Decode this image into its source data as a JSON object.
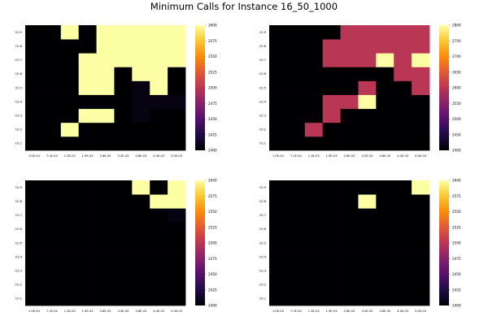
{
  "title": "Minimum Calls for Instance 16_50_1000",
  "chart_data": [
    {
      "type": "heatmap",
      "colormap": "inferno",
      "x_ticks": [
        "1.0E-04",
        "7.1E-04",
        "1.3E-03",
        "1.9E-03",
        "2.6E-03",
        "3.2E-03",
        "3.8E-03",
        "4.4E-03",
        "5.0E-03"
      ],
      "y_ticks": [
        "C0.1",
        "C0.2",
        "C0.3",
        "C0.4",
        "C0.5",
        "C0.6",
        "C0.7",
        "C0.8",
        "C0.9"
      ],
      "clim": [
        2400,
        2600
      ],
      "colorbar_ticks": [
        "2400",
        "2425",
        "2450",
        "2475",
        "2500",
        "2525",
        "2550",
        "2575",
        "2600"
      ],
      "values": [
        [
          2400,
          2400,
          2400,
          2400,
          2400,
          2400,
          2400,
          2400,
          2400
        ],
        [
          2400,
          2400,
          2600,
          2400,
          2400,
          2400,
          2400,
          2400,
          2400
        ],
        [
          2400,
          2400,
          2400,
          2600,
          2600,
          2400,
          2405,
          2400,
          2400
        ],
        [
          2400,
          2400,
          2400,
          2400,
          2400,
          2400,
          2405,
          2405,
          2405
        ],
        [
          2400,
          2400,
          2400,
          2600,
          2600,
          2400,
          2405,
          2600,
          2400
        ],
        [
          2400,
          2400,
          2400,
          2600,
          2600,
          2400,
          2600,
          2600,
          2400
        ],
        [
          2400,
          2400,
          2400,
          2600,
          2600,
          2600,
          2600,
          2600,
          2600
        ],
        [
          2400,
          2400,
          2400,
          2400,
          2600,
          2600,
          2600,
          2600,
          2600
        ],
        [
          2400,
          2400,
          2600,
          2400,
          2600,
          2600,
          2600,
          2600,
          2600
        ]
      ]
    },
    {
      "type": "heatmap",
      "colormap": "inferno",
      "x_ticks": [
        "1.0E-04",
        "7.1E-04",
        "1.3E-03",
        "1.9E-03",
        "2.6E-03",
        "3.2E-03",
        "3.8E-03",
        "4.4E-03",
        "5.0E-03"
      ],
      "y_ticks": [
        "C0.1",
        "C0.2",
        "C0.3",
        "C0.4",
        "C0.5",
        "C0.6",
        "C0.7",
        "C0.8",
        "C0.9"
      ],
      "clim": [
        2400,
        2800
      ],
      "colorbar_ticks": [
        "2400",
        "2450",
        "2500",
        "2550",
        "2600",
        "2650",
        "2700",
        "2750",
        "2800"
      ],
      "values": [
        [
          2400,
          2400,
          2400,
          2400,
          2400,
          2400,
          2400,
          2400,
          2400
        ],
        [
          2400,
          2400,
          2600,
          2400,
          2400,
          2400,
          2400,
          2400,
          2400
        ],
        [
          2400,
          2400,
          2400,
          2600,
          2400,
          2400,
          2400,
          2400,
          2400
        ],
        [
          2400,
          2400,
          2400,
          2600,
          2600,
          2800,
          2400,
          2400,
          2400
        ],
        [
          2400,
          2400,
          2400,
          2400,
          2400,
          2600,
          2400,
          2400,
          2600
        ],
        [
          2400,
          2400,
          2400,
          2400,
          2400,
          2400,
          2400,
          2600,
          2600
        ],
        [
          2400,
          2400,
          2400,
          2600,
          2600,
          2600,
          2800,
          2600,
          2800
        ],
        [
          2400,
          2400,
          2400,
          2600,
          2600,
          2600,
          2600,
          2600,
          2600
        ],
        [
          2400,
          2400,
          2400,
          2400,
          2600,
          2600,
          2600,
          2600,
          2600
        ]
      ]
    },
    {
      "type": "heatmap",
      "colormap": "inferno",
      "x_ticks": [
        "1.0E-04",
        "7.1E-04",
        "1.3E-03",
        "1.9E-03",
        "2.6E-03",
        "3.2E-03",
        "3.8E-03",
        "4.4E-03",
        "5.0E-03"
      ],
      "y_ticks": [
        "C0.1",
        "C0.2",
        "C0.3",
        "C0.4",
        "C0.5",
        "C0.6",
        "C0.7",
        "C0.8",
        "C0.9"
      ],
      "clim": [
        2400,
        2600
      ],
      "colorbar_ticks": [
        "2400",
        "2425",
        "2450",
        "2475",
        "2500",
        "2525",
        "2550",
        "2575",
        "2600"
      ],
      "values": [
        [
          2400,
          2400,
          2400,
          2400,
          2400,
          2400,
          2400,
          2400,
          2400
        ],
        [
          2400,
          2400,
          2400,
          2400,
          2400,
          2400,
          2400,
          2400,
          2400
        ],
        [
          2400,
          2400,
          2400,
          2400,
          2400,
          2400,
          2400,
          2400,
          2400
        ],
        [
          2400,
          2400,
          2400,
          2400,
          2400,
          2400,
          2400,
          2400,
          2400
        ],
        [
          2400,
          2400,
          2400,
          2400,
          2400,
          2400,
          2400,
          2400,
          2400
        ],
        [
          2400,
          2400,
          2400,
          2400,
          2400,
          2400,
          2400,
          2400,
          2400
        ],
        [
          2400,
          2400,
          2400,
          2400,
          2400,
          2400,
          2400,
          2400,
          2405
        ],
        [
          2400,
          2400,
          2400,
          2400,
          2400,
          2400,
          2400,
          2600,
          2600
        ],
        [
          2400,
          2400,
          2400,
          2400,
          2400,
          2400,
          2600,
          2400,
          2600
        ]
      ]
    },
    {
      "type": "heatmap",
      "colormap": "inferno",
      "x_ticks": [
        "1.0E-04",
        "7.1E-04",
        "1.3E-03",
        "1.9E-03",
        "2.6E-03",
        "3.2E-03",
        "3.8E-03",
        "4.4E-03",
        "5.0E-03"
      ],
      "y_ticks": [
        "C0.1",
        "C0.2",
        "C0.3",
        "C0.4",
        "C0.5",
        "C0.6",
        "C0.7",
        "C0.8",
        "C0.9"
      ],
      "clim": [
        2400,
        2600
      ],
      "colorbar_ticks": [
        "2400",
        "2425",
        "2450",
        "2475",
        "2500",
        "2525",
        "2550",
        "2575",
        "2600"
      ],
      "values": [
        [
          2400,
          2400,
          2400,
          2400,
          2400,
          2400,
          2400,
          2400,
          2400
        ],
        [
          2400,
          2400,
          2400,
          2400,
          2400,
          2400,
          2400,
          2400,
          2400
        ],
        [
          2400,
          2400,
          2400,
          2400,
          2400,
          2400,
          2400,
          2400,
          2400
        ],
        [
          2400,
          2400,
          2400,
          2400,
          2400,
          2400,
          2400,
          2400,
          2400
        ],
        [
          2400,
          2400,
          2400,
          2400,
          2400,
          2400,
          2400,
          2400,
          2400
        ],
        [
          2400,
          2400,
          2400,
          2400,
          2400,
          2400,
          2400,
          2400,
          2400
        ],
        [
          2400,
          2400,
          2400,
          2400,
          2400,
          2400,
          2400,
          2400,
          2400
        ],
        [
          2400,
          2400,
          2400,
          2400,
          2400,
          2600,
          2400,
          2400,
          2400
        ],
        [
          2400,
          2400,
          2400,
          2400,
          2400,
          2400,
          2400,
          2400,
          2600
        ]
      ]
    }
  ]
}
